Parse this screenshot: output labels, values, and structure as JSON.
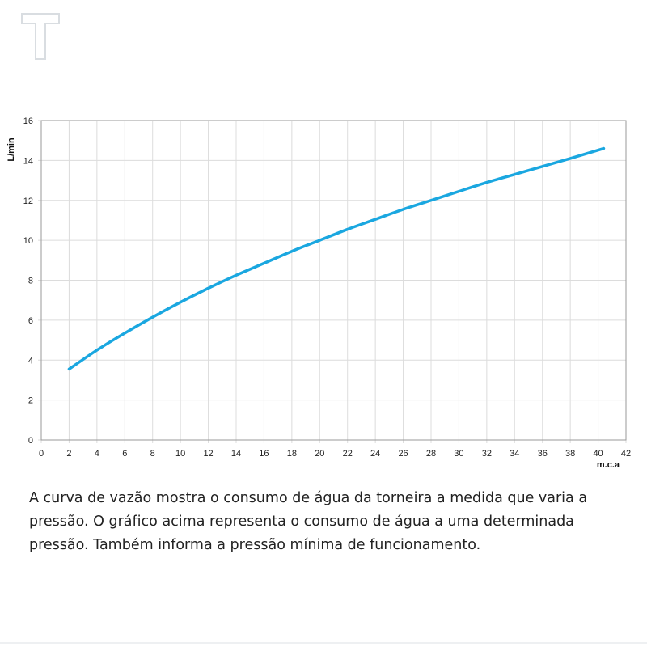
{
  "brand": {
    "logo_icon": "t-letter-logo-icon",
    "logo_color": "#d9dde1"
  },
  "chart_data": {
    "type": "line",
    "ylabel": "L/min",
    "xlabel": "m.c.a",
    "xlim": [
      0,
      42
    ],
    "ylim": [
      0,
      16
    ],
    "x_ticks": [
      "0",
      "2",
      "4",
      "6",
      "8",
      "10",
      "12",
      "14",
      "16",
      "18",
      "20",
      "22",
      "24",
      "26",
      "28",
      "30",
      "32",
      "34",
      "36",
      "38",
      "40",
      "42"
    ],
    "y_ticks": [
      "0",
      "2",
      "4",
      "6",
      "8",
      "10",
      "12",
      "14",
      "16"
    ],
    "grid": true,
    "legend": "none",
    "series": [
      {
        "color": "#1aa7e0",
        "x": [
          2,
          4,
          6,
          8,
          10,
          12,
          14,
          16,
          18,
          20,
          22,
          24,
          26,
          28,
          30,
          32,
          34,
          36,
          38,
          40.4
        ],
        "y": [
          3.55,
          4.5,
          5.35,
          6.15,
          6.9,
          7.6,
          8.25,
          8.85,
          9.45,
          10.0,
          10.55,
          11.05,
          11.55,
          12.0,
          12.45,
          12.9,
          13.3,
          13.7,
          14.1,
          14.6
        ]
      }
    ]
  },
  "caption": "A curva de vazão mostra o consumo de água da torneira a medida que varia a pressão. O gráfico acima representa o consumo de água a uma determinada pressão. Também informa a pressão mínima de funcionamento."
}
